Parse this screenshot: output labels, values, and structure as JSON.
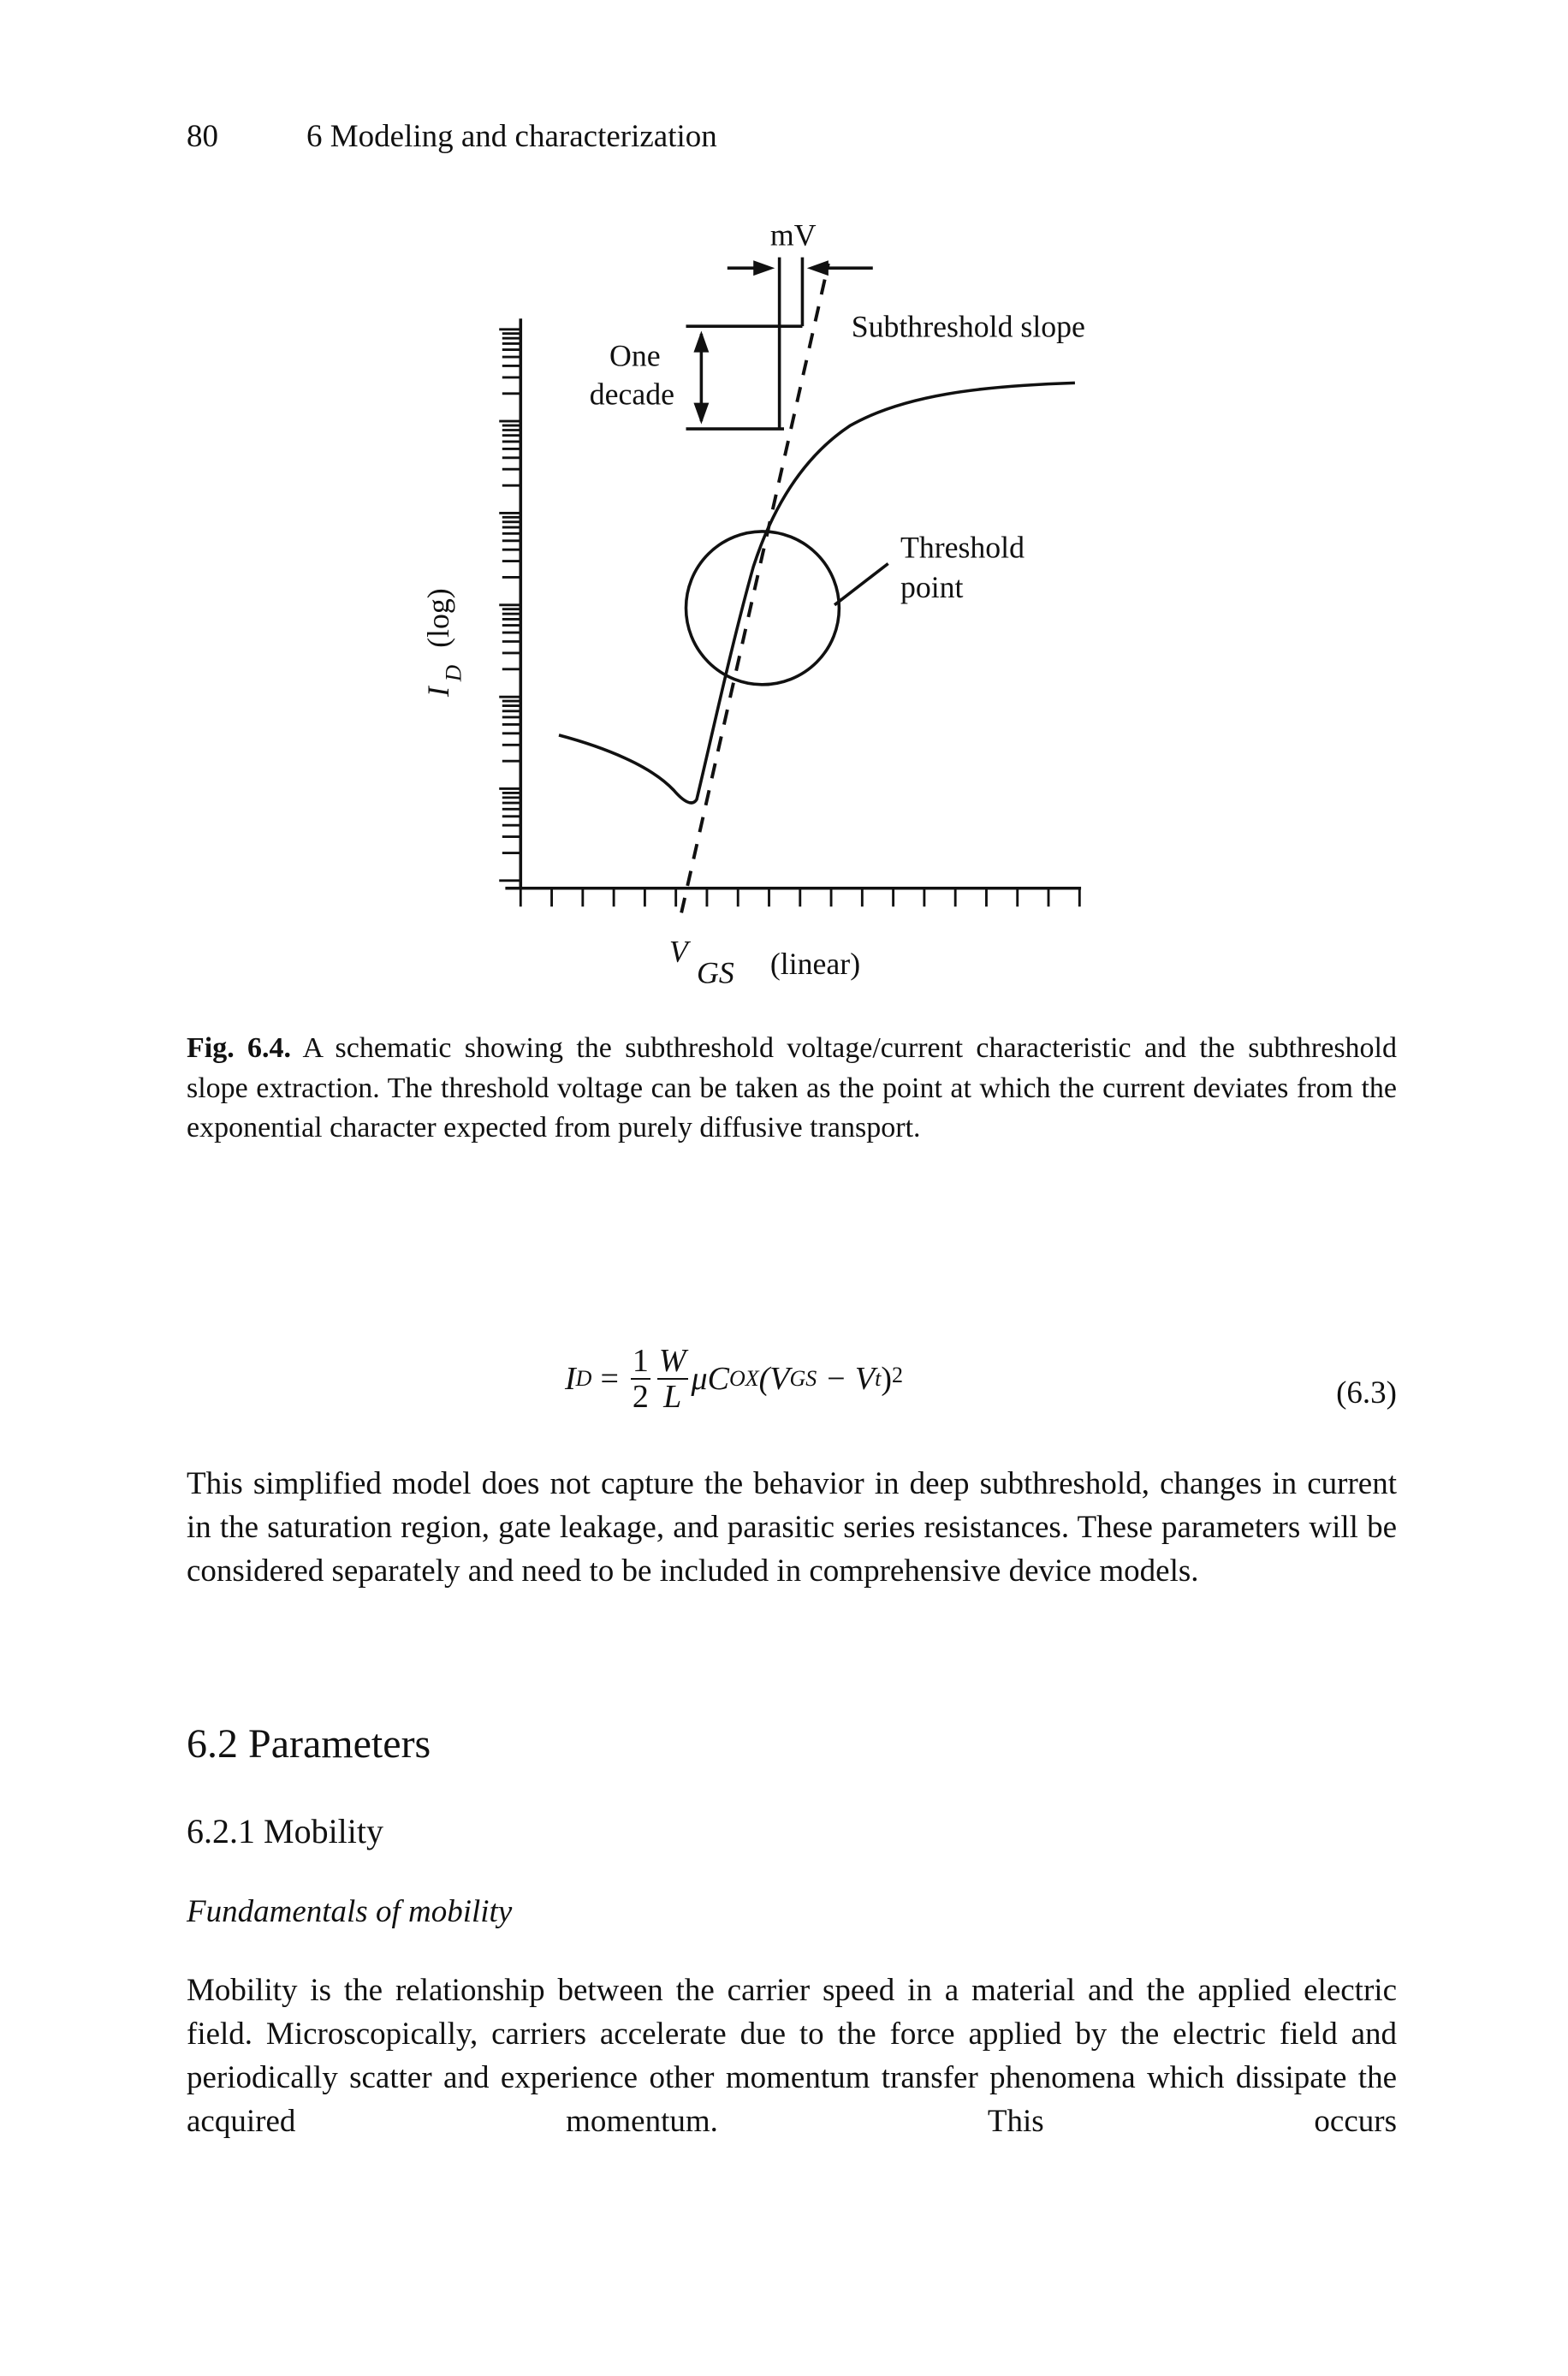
{
  "header": {
    "page_number": "80",
    "running_title": "6 Modeling and characterization"
  },
  "figure": {
    "labels": {
      "mv": "mV",
      "one": "One",
      "decade": "decade",
      "subthreshold_slope": "Subthreshold slope",
      "threshold": "Threshold",
      "point": "point",
      "y_axis_symbol": "I",
      "y_axis_subscript": "D",
      "y_axis_scale": "(log)",
      "x_axis_symbol": "V",
      "x_axis_subscript": "GS",
      "x_axis_scale": "(linear)"
    },
    "caption": {
      "label": "Fig. 6.4.",
      "text": "A schematic showing the subthreshold voltage/current characteristic and the subthreshold slope extraction. The threshold voltage can be taken as the point at which the current deviates from the exponential character expected from purely diffusive transport."
    }
  },
  "equation": {
    "lhs": "I",
    "lhs_sub": "D",
    "equals": "=",
    "num1": "1",
    "den1": "2",
    "num2": "W",
    "den2": "L",
    "mu": "μC",
    "mu_sub": "OX",
    "open": "(V",
    "gs_sub": "GS",
    "minus": " − V",
    "t_sub": "t",
    "close": ")",
    "power": "2",
    "number": "(6.3)"
  },
  "paragraphs": [
    "This simplified model does not capture the behavior in deep subthreshold, changes in current in the saturation region, gate leakage, and parasitic series resistances. These parameters will be considered separately and need to be included in comprehensive device models."
  ],
  "section": {
    "heading": "6.2 Parameters",
    "subsection": "6.2.1 Mobility",
    "subsubsection": "Fundamentals of mobility",
    "paragraphs": [
      "Mobility is the relationship between the carrier speed in a material and the applied electric field. Microscopically, carriers accelerate due to the force applied by the electric field and periodically scatter and experience other momentum transfer phenomena which dissipate the acquired momentum. This occurs"
    ]
  }
}
